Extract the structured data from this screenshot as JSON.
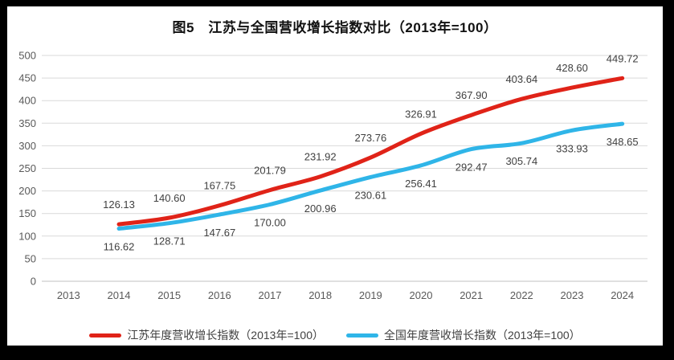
{
  "frame": {
    "background": "#000000",
    "surface": "#ffffff"
  },
  "text_colors": {
    "title": "#111111",
    "axis": "#595959",
    "data_label": "#404040",
    "legend": "#404040"
  },
  "grid_colors": {
    "line": "#d9d9d9",
    "baseline": "#c0c0c0"
  },
  "chart_data": {
    "type": "line",
    "title": "图5　江苏与全国营收增长指数对比（2013年=100）",
    "categories": [
      "2013",
      "2014",
      "2015",
      "2016",
      "2017",
      "2018",
      "2019",
      "2020",
      "2021",
      "2022",
      "2023",
      "2024"
    ],
    "y_axis": {
      "min": 0,
      "max": 500,
      "step": 50
    },
    "grid": "horizontal",
    "legend_position": "bottom",
    "series": [
      {
        "id": "jiangsu",
        "name": "江苏年度营收增长指数（2013年=100）",
        "color": "#e02318",
        "label_position": "above",
        "x": [
          "2014",
          "2015",
          "2016",
          "2017",
          "2018",
          "2019",
          "2020",
          "2021",
          "2022",
          "2023",
          "2024"
        ],
        "values": [
          126.13,
          140.6,
          167.75,
          201.79,
          231.92,
          273.76,
          326.91,
          367.9,
          403.64,
          428.6,
          449.72
        ]
      },
      {
        "id": "national",
        "name": "全国年度营收增长指数（2013年=100）",
        "color": "#2fb5e8",
        "label_position": "below",
        "x": [
          "2014",
          "2015",
          "2016",
          "2017",
          "2018",
          "2019",
          "2020",
          "2021",
          "2022",
          "2023",
          "2024"
        ],
        "values": [
          116.62,
          128.71,
          147.67,
          170.0,
          200.96,
          230.61,
          256.41,
          292.47,
          305.74,
          333.93,
          348.65
        ]
      }
    ]
  }
}
